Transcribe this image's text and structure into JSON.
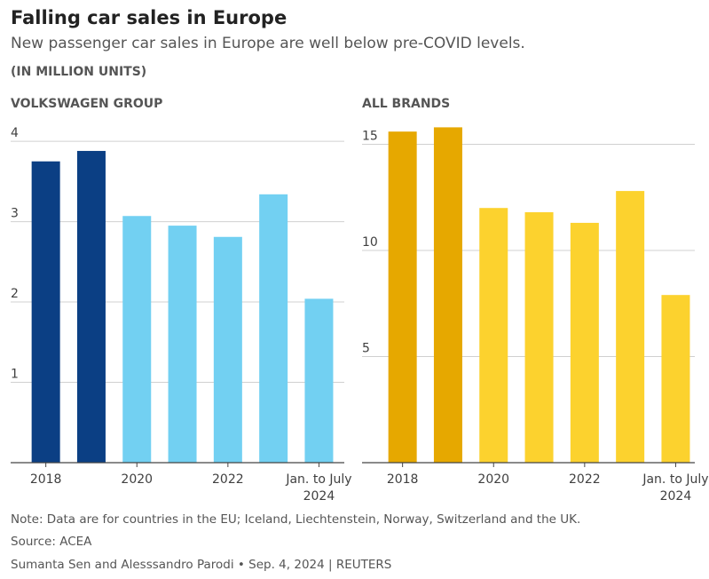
{
  "title": "Falling car sales in Europe",
  "subtitle": "New passenger car sales in Europe are well below pre-COVID levels.",
  "unit": "(IN MILLION UNITS)",
  "chart_data": [
    {
      "type": "bar",
      "title": "VOLKSWAGEN GROUP",
      "categories": [
        "2018",
        null,
        "2020",
        null,
        "2022",
        null,
        "Jan. to July 2024"
      ],
      "values": [
        3.75,
        3.88,
        3.07,
        2.95,
        2.81,
        3.34,
        2.04
      ],
      "colors": [
        "#0b3f84",
        "#0b3f84",
        "#72d0f2",
        "#72d0f2",
        "#72d0f2",
        "#72d0f2",
        "#72d0f2"
      ],
      "ylim": [
        0,
        4.2
      ],
      "yticks": [
        1,
        2,
        3,
        4
      ],
      "grid": true
    },
    {
      "type": "bar",
      "title": "ALL BRANDS",
      "categories": [
        "2018",
        null,
        "2020",
        null,
        "2022",
        null,
        "Jan. to July 2024"
      ],
      "values": [
        15.6,
        15.8,
        12.0,
        11.8,
        11.3,
        12.8,
        7.9
      ],
      "colors": [
        "#e6a800",
        "#e6a800",
        "#fcd22e",
        "#fcd22e",
        "#fcd22e",
        "#fcd22e",
        "#fcd22e"
      ],
      "ylim": [
        0,
        15.9
      ],
      "yticks": [
        5,
        10,
        15
      ],
      "grid": true
    }
  ],
  "note": "Note: Data are for countries in the EU; Iceland, Liechtenstein, Norway, Switzerland and the UK.",
  "source": "Source: ACEA",
  "byline": "Sumanta Sen and Alesssandro Parodi • Sep. 4, 2024 | REUTERS"
}
